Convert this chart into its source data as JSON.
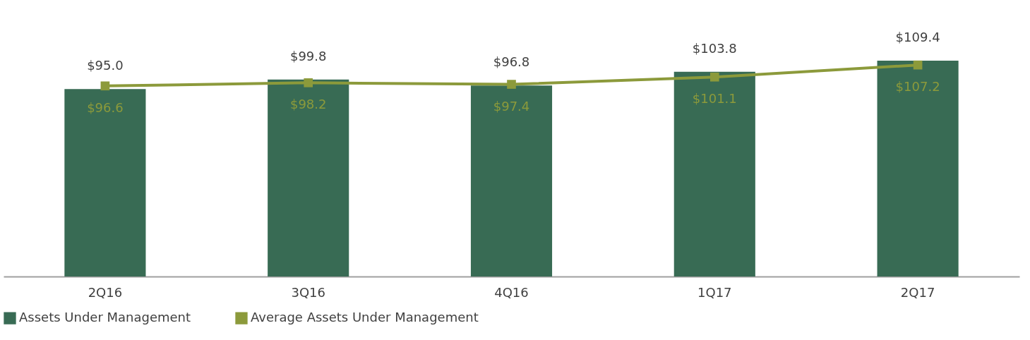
{
  "chart_data": {
    "type": "bar",
    "categories": [
      "2Q16",
      "3Q16",
      "4Q16",
      "1Q17",
      "2Q17"
    ],
    "series": [
      {
        "name": "Assets Under Management",
        "color": "#386b54",
        "values": [
          95.0,
          99.8,
          96.8,
          103.8,
          109.4
        ],
        "value_labels": [
          "$95.0",
          "$99.8",
          "$96.8",
          "$103.8",
          "$109.4"
        ]
      },
      {
        "name": "Average Assets Under Management",
        "type": "line",
        "color": "#8c9a3b",
        "values": [
          96.6,
          98.2,
          97.4,
          101.1,
          107.2
        ],
        "value_labels": [
          "$96.6",
          "$98.2",
          "$97.4",
          "$101.1",
          "$107.2"
        ]
      }
    ],
    "marker": "square",
    "legend": "bottom",
    "grid": false,
    "tick_labels": "x"
  }
}
